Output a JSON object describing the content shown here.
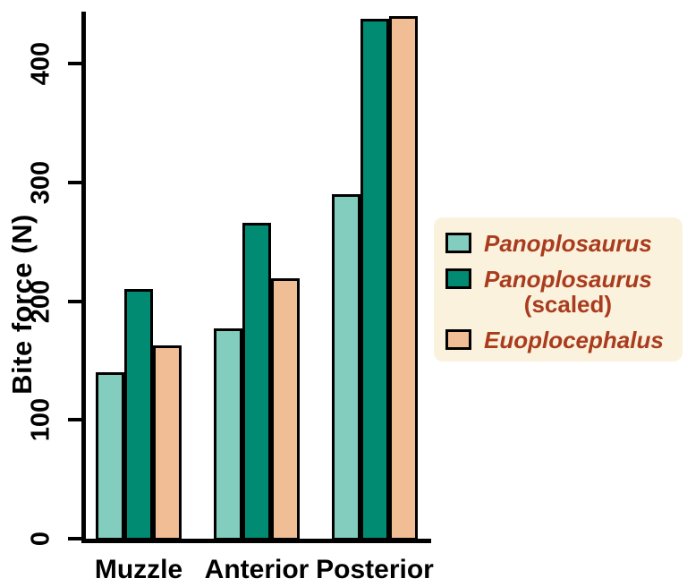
{
  "chart_data": {
    "type": "bar",
    "title": "",
    "xlabel": "",
    "ylabel": "Bite force (N)",
    "categories": [
      "Muzzle",
      "Anterior",
      "Posterior"
    ],
    "series": [
      {
        "name": "Panoplosaurus",
        "name_line2": "",
        "color": "#82CDBE",
        "values": [
          140,
          177,
          290
        ]
      },
      {
        "name": "Panoplosaurus",
        "name_line2": "(scaled)",
        "color": "#008B72",
        "values": [
          210,
          266,
          438
        ]
      },
      {
        "name": "Euoplocephalus",
        "name_line2": "",
        "color": "#F1BD95",
        "values": [
          163,
          219,
          440
        ]
      }
    ],
    "ylim": [
      0,
      445
    ],
    "yticks": [
      0,
      100,
      200,
      300,
      400
    ],
    "grid": false,
    "legend_position": "right"
  },
  "style": {
    "legend_background": "#FBF2DD",
    "legend_text_color": "#A93C1E",
    "axis_color": "#000000",
    "bar_border_color": "#000000"
  }
}
